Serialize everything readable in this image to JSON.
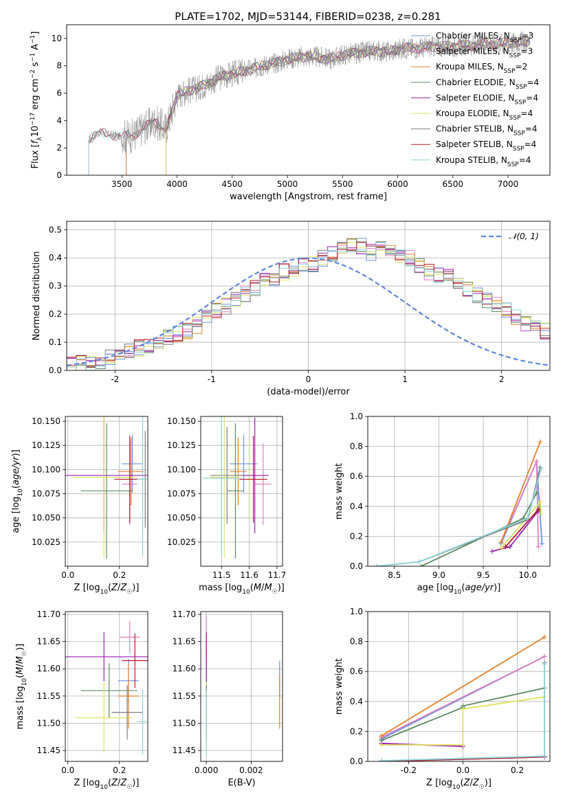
{
  "figure_title": "PLATE=1702, MJD=53144, FIBERID=0238, z=0.281",
  "colors": {
    "chabrier_miles": "#6f8fe0",
    "salpeter_miles": "#e07fc1",
    "kroupa_miles": "#e2802c",
    "chabrier_elodie": "#5e8a63",
    "salpeter_elodie": "#9a1fb0",
    "kroupa_elodie": "#dfe35e",
    "chabrier_stelib": "#7f7f7f",
    "salpeter_stelib": "#b2182b",
    "kroupa_stelib": "#8fd3d8",
    "gaussian": "#5f86dc",
    "grid": "#b0b0b0"
  },
  "chart_data": [
    {
      "id": "spectrum",
      "type": "line",
      "xlabel": "wavelength [Angstrom, rest frame]",
      "ylabel": "Flux [f_λ 10^-17 erg cm^-2 s^-1 A^-1]",
      "xlim": [
        3000,
        7380
      ],
      "ylim": [
        0,
        11
      ],
      "xticks": [
        3500,
        4000,
        4500,
        5000,
        5500,
        6000,
        6500,
        7000
      ],
      "yticks": [
        0,
        2,
        4,
        6,
        8,
        10
      ],
      "grid": false,
      "legend_position": "top-right",
      "legend": [
        {
          "text": "Chabrier MILES, N",
          "sub": "SSP",
          "tail": "=3",
          "color_key": "chabrier_miles"
        },
        {
          "text": "Salpeter MILES, N",
          "sub": "SSP",
          "tail": "=3",
          "color_key": "salpeter_miles"
        },
        {
          "text": "Kroupa MILES, N",
          "sub": "SSP",
          "tail": "=2",
          "color_key": "kroupa_miles"
        },
        {
          "text": "Chabrier ELODIE, N",
          "sub": "SSP",
          "tail": "=4",
          "color_key": "chabrier_elodie"
        },
        {
          "text": "Salpeter ELODIE, N",
          "sub": "SSP",
          "tail": "=4",
          "color_key": "salpeter_elodie"
        },
        {
          "text": "Kroupa ELODIE, N",
          "sub": "SSP",
          "tail": "=4",
          "color_key": "kroupa_elodie"
        },
        {
          "text": "Chabrier STELIB, N",
          "sub": "SSP",
          "tail": "=4",
          "color_key": "chabrier_stelib"
        },
        {
          "text": "Salpeter STELIB, N",
          "sub": "SSP",
          "tail": "=4",
          "color_key": "salpeter_stelib"
        },
        {
          "text": "Kroupa STELIB, N",
          "sub": "SSP",
          "tail": "=4",
          "color_key": "kroupa_stelib"
        }
      ],
      "continuum_x": [
        3200,
        3300,
        3400,
        3500,
        3600,
        3700,
        3800,
        3900,
        4000,
        4100,
        4200,
        4300,
        4400,
        4500,
        4600,
        4700,
        4800,
        4900,
        5000,
        5100,
        5200,
        5300,
        5400,
        5500,
        5600,
        5700,
        5800,
        5900,
        6000,
        6100,
        6200,
        6300,
        6400,
        6500,
        6600,
        6700,
        6800,
        6900,
        7000,
        7100,
        7200
      ],
      "continuum_y": [
        2.6,
        3.1,
        3.0,
        2.8,
        2.9,
        3.5,
        3.9,
        3.4,
        5.8,
        6.2,
        6.4,
        6.8,
        7.2,
        7.4,
        7.6,
        7.8,
        8.1,
        8.2,
        8.5,
        8.6,
        8.7,
        8.6,
        8.5,
        8.8,
        8.9,
        9.0,
        9.1,
        9.0,
        9.2,
        9.3,
        9.3,
        9.4,
        9.4,
        9.4,
        9.5,
        9.5,
        9.6,
        9.6,
        9.7,
        9.7,
        9.8
      ],
      "model_onsets": [
        {
          "model": "chabrier_miles",
          "start": 3540
        },
        {
          "model": "salpeter_miles",
          "start": 3540
        },
        {
          "model": "kroupa_miles",
          "start": 3540
        },
        {
          "model": "chabrier_elodie",
          "start": 3900
        },
        {
          "model": "salpeter_elodie",
          "start": 3900
        },
        {
          "model": "kroupa_elodie",
          "start": 3900
        },
        {
          "model": "chabrier_stelib",
          "start": 3200
        },
        {
          "model": "salpeter_stelib",
          "start": 3200
        },
        {
          "model": "kroupa_stelib",
          "start": 3200
        }
      ]
    },
    {
      "id": "residual_hist",
      "type": "line",
      "xlabel": "(data-model)/error",
      "ylabel": "Normed distribution",
      "xlim": [
        -2.5,
        2.5
      ],
      "ylim": [
        0,
        0.53
      ],
      "xticks": [
        -2,
        -1,
        0,
        1,
        2
      ],
      "yticks": [
        0.0,
        0.1,
        0.2,
        0.3,
        0.4,
        0.5
      ],
      "grid": true,
      "legend_position": "top-right",
      "legend": [
        {
          "text": "𝒩(0, 1)",
          "color_key": "gaussian",
          "style": "dashed"
        }
      ],
      "bin_width": 0.1,
      "bin_start": -2.5,
      "base_hist": [
        0.02,
        0.025,
        0.03,
        0.035,
        0.045,
        0.06,
        0.07,
        0.08,
        0.09,
        0.1,
        0.12,
        0.13,
        0.14,
        0.16,
        0.19,
        0.21,
        0.23,
        0.25,
        0.27,
        0.29,
        0.32,
        0.33,
        0.35,
        0.36,
        0.37,
        0.38,
        0.4,
        0.41,
        0.43,
        0.44,
        0.44,
        0.42,
        0.43,
        0.42,
        0.41,
        0.4,
        0.37,
        0.35,
        0.34,
        0.33,
        0.31,
        0.29,
        0.27,
        0.25,
        0.23,
        0.21,
        0.19,
        0.17,
        0.16,
        0.14,
        0.12,
        0.11,
        0.1,
        0.08,
        0.07,
        0.06,
        0.055,
        0.04,
        0.035,
        0.03
      ],
      "series_models": [
        "chabrier_miles",
        "salpeter_miles",
        "kroupa_miles",
        "chabrier_elodie",
        "salpeter_elodie",
        "kroupa_elodie",
        "chabrier_stelib",
        "salpeter_stelib",
        "kroupa_stelib"
      ]
    },
    {
      "id": "age_vs_Z",
      "type": "scatter",
      "xlabel": "Z [log10(Z/Z☉)]",
      "ylabel": "age [log10(age/yr)]",
      "xlim": [
        -0.01,
        0.31
      ],
      "ylim": [
        10.0,
        10.155
      ],
      "xticks": [
        0.0,
        0.2
      ],
      "yticks": [
        10.025,
        10.05,
        10.075,
        10.1,
        10.125,
        10.15
      ],
      "grid": true,
      "points": [
        {
          "model": "chabrier_miles",
          "x": 0.25,
          "xerr": 0.04,
          "y": 10.106,
          "yerr": 0.03
        },
        {
          "model": "salpeter_miles",
          "x": 0.24,
          "xerr": 0.03,
          "y": 10.085,
          "yerr": 0.042
        },
        {
          "model": "kroupa_miles",
          "x": 0.245,
          "xerr": 0.05,
          "y": 10.098,
          "yerr": 0.035
        },
        {
          "model": "chabrier_elodie",
          "x": 0.15,
          "xerr": 0.1,
          "y": 10.078,
          "yerr": 0.07
        },
        {
          "model": "salpeter_elodie",
          "x": 0.14,
          "xerr": 0.26,
          "y": 10.094,
          "yerr": 0.06
        },
        {
          "model": "kroupa_elodie",
          "x": 0.14,
          "xerr": 0.12,
          "y": 10.092,
          "yerr": 0.083
        },
        {
          "model": "chabrier_stelib",
          "x": 0.3,
          "xerr": 0.02,
          "y": 10.09,
          "yerr": 0.05
        },
        {
          "model": "salpeter_stelib",
          "x": 0.24,
          "xerr": 0.06,
          "y": 10.09,
          "yerr": 0.045
        },
        {
          "model": "kroupa_stelib",
          "x": 0.29,
          "xerr": 0.02,
          "y": 10.09,
          "yerr": 0.08
        }
      ]
    },
    {
      "id": "age_vs_mass",
      "type": "scatter",
      "xlabel": "mass [log10(M/M☉)]",
      "ylabel": "",
      "xlim": [
        11.425,
        11.72
      ],
      "ylim": [
        10.0,
        10.155
      ],
      "xticks": [
        11.5,
        11.6,
        11.7
      ],
      "yticks": [
        10.025,
        10.05,
        10.075,
        10.1,
        10.125,
        10.15
      ],
      "grid": true,
      "points": [
        {
          "model": "chabrier_miles",
          "x": 11.58,
          "xerr": 0.05,
          "y": 10.106,
          "yerr": 0.03
        },
        {
          "model": "salpeter_miles",
          "x": 11.65,
          "xerr": 0.03,
          "y": 10.085,
          "yerr": 0.042
        },
        {
          "model": "kroupa_miles",
          "x": 11.56,
          "xerr": 0.03,
          "y": 10.098,
          "yerr": 0.035
        },
        {
          "model": "chabrier_elodie",
          "x": 11.55,
          "xerr": 0.03,
          "y": 10.078,
          "yerr": 0.07
        },
        {
          "model": "salpeter_elodie",
          "x": 11.62,
          "xerr": 0.05,
          "y": 10.094,
          "yerr": 0.06
        },
        {
          "model": "kroupa_elodie",
          "x": 11.51,
          "xerr": 0.05,
          "y": 10.092,
          "yerr": 0.083
        },
        {
          "model": "chabrier_stelib",
          "x": 11.52,
          "xerr": 0.06,
          "y": 10.094,
          "yerr": 0.05
        },
        {
          "model": "salpeter_stelib",
          "x": 11.615,
          "xerr": 0.05,
          "y": 10.09,
          "yerr": 0.045
        },
        {
          "model": "kroupa_stelib",
          "x": 11.5,
          "xerr": 0.07,
          "y": 10.091,
          "yerr": 0.08
        }
      ]
    },
    {
      "id": "massweight_vs_age",
      "type": "line",
      "xlabel": "age [log10(age/yr)]",
      "ylabel": "mass weight",
      "xlim": [
        8.2,
        10.25
      ],
      "ylim": [
        0,
        1.0
      ],
      "xticks": [
        8.5,
        9.0,
        9.5,
        10.0
      ],
      "yticks": [
        0.0,
        0.2,
        0.4,
        0.6,
        0.8,
        1.0
      ],
      "grid": true,
      "series": [
        {
          "model": "chabrier_miles",
          "x": [
            9.7,
            10.1,
            10.16
          ],
          "y": [
            0.15,
            0.7,
            0.15
          ]
        },
        {
          "model": "salpeter_miles",
          "x": [
            9.7,
            10.1,
            10.12
          ],
          "y": [
            0.16,
            0.7,
            0.13
          ]
        },
        {
          "model": "kroupa_miles",
          "x": [
            9.7,
            10.14
          ],
          "y": [
            0.16,
            0.83
          ]
        },
        {
          "model": "chabrier_elodie",
          "x": [
            8.8,
            9.95,
            10.1
          ],
          "y": [
            0.0,
            0.32,
            0.49
          ]
        },
        {
          "model": "salpeter_elodie",
          "x": [
            9.6,
            9.8,
            10.12
          ],
          "y": [
            0.1,
            0.13,
            0.37
          ]
        },
        {
          "model": "kroupa_elodie",
          "x": [
            9.7,
            10.14,
            10.15
          ],
          "y": [
            0.12,
            0.43,
            0.35
          ]
        },
        {
          "model": "chabrier_stelib",
          "x": [
            8.3,
            8.78,
            10.0,
            10.14
          ],
          "y": [
            0.0,
            0.03,
            0.31,
            0.66
          ]
        },
        {
          "model": "salpeter_stelib",
          "x": [
            9.75,
            10.12
          ],
          "y": [
            0.13,
            0.38
          ]
        },
        {
          "model": "kroupa_stelib",
          "x": [
            8.3,
            8.78,
            10.0,
            10.15
          ],
          "y": [
            0.0,
            0.03,
            0.32,
            0.65
          ]
        }
      ]
    },
    {
      "id": "mass_vs_Z",
      "type": "scatter",
      "xlabel": "Z [log10(Z/Z☉)]",
      "ylabel": "mass [log10(M/M☉)]",
      "xlim": [
        -0.01,
        0.31
      ],
      "ylim": [
        11.43,
        11.705
      ],
      "xticks": [
        0.0,
        0.2
      ],
      "yticks": [
        11.45,
        11.5,
        11.55,
        11.6,
        11.65,
        11.7
      ],
      "grid": true,
      "points": [
        {
          "model": "chabrier_miles",
          "x": 0.235,
          "xerr": 0.04,
          "y": 11.578,
          "yerr": 0.04
        },
        {
          "model": "salpeter_miles",
          "x": 0.24,
          "xerr": 0.04,
          "y": 11.658,
          "yerr": 0.03
        },
        {
          "model": "kroupa_miles",
          "x": 0.235,
          "xerr": 0.04,
          "y": 11.55,
          "yerr": 0.06
        },
        {
          "model": "chabrier_elodie",
          "x": 0.16,
          "xerr": 0.11,
          "y": 11.56,
          "yerr": 0.05
        },
        {
          "model": "salpeter_elodie",
          "x": 0.14,
          "xerr": 0.26,
          "y": 11.622,
          "yerr": 0.045
        },
        {
          "model": "kroupa_elodie",
          "x": 0.14,
          "xerr": 0.11,
          "y": 11.51,
          "yerr": 0.065
        },
        {
          "model": "chabrier_stelib",
          "x": 0.23,
          "xerr": 0.06,
          "y": 11.52,
          "yerr": 0.05
        },
        {
          "model": "salpeter_stelib",
          "x": 0.26,
          "xerr": 0.05,
          "y": 11.615,
          "yerr": 0.05
        },
        {
          "model": "kroupa_stelib",
          "x": 0.29,
          "xerr": 0.02,
          "y": 11.503,
          "yerr": 0.06
        }
      ]
    },
    {
      "id": "mass_vs_ebv",
      "type": "scatter",
      "xlabel": "E(B-V)",
      "ylabel": "",
      "xlim": [
        -0.00025,
        0.0034
      ],
      "ylim": [
        11.43,
        11.705
      ],
      "xticks": [
        0.0,
        0.002
      ],
      "yticks": [
        11.45,
        11.5,
        11.55,
        11.6,
        11.65,
        11.7
      ],
      "grid": true,
      "points": [
        {
          "model": "chabrier_miles",
          "x": 0.00327,
          "xerr": 0.0,
          "y": 11.58,
          "yerr": 0.035
        },
        {
          "model": "kroupa_miles",
          "x": 0.00327,
          "xerr": 0.0,
          "y": 11.54,
          "yerr": 0.05
        },
        {
          "model": "salpeter_miles",
          "x": 0.0,
          "xerr": 0.0,
          "y": 11.658,
          "yerr": 0.04
        },
        {
          "model": "salpeter_stelib",
          "x": 0.0,
          "xerr": 0.0,
          "y": 11.615,
          "yerr": 0.05
        },
        {
          "model": "chabrier_elodie",
          "x": 0.0,
          "xerr": 0.0,
          "y": 11.56,
          "yerr": 0.05
        },
        {
          "model": "salpeter_elodie",
          "x": 0.0,
          "xerr": 0.0,
          "y": 11.622,
          "yerr": 0.045
        },
        {
          "model": "kroupa_elodie",
          "x": 0.0,
          "xerr": 0.0,
          "y": 11.51,
          "yerr": 0.065
        },
        {
          "model": "chabrier_stelib",
          "x": 0.0,
          "xerr": 0.0,
          "y": 11.52,
          "yerr": 0.05
        },
        {
          "model": "kroupa_stelib",
          "x": 0.0,
          "xerr": 0.0,
          "y": 11.5,
          "yerr": 0.06
        }
      ]
    },
    {
      "id": "massweight_vs_Z",
      "type": "line",
      "xlabel": "Z [log10(Z/Z☉)]",
      "ylabel": "mass weight",
      "xlim": [
        -0.35,
        0.32
      ],
      "ylim": [
        0,
        1.0
      ],
      "xticks": [
        -0.2,
        0.0,
        0.2
      ],
      "yticks": [
        0.0,
        0.2,
        0.4,
        0.6,
        0.8,
        1.0
      ],
      "grid": true,
      "series": [
        {
          "model": "chabrier_miles",
          "x": [
            -0.3,
            0.3
          ],
          "y": [
            0.15,
            0.7
          ]
        },
        {
          "model": "salpeter_miles",
          "x": [
            -0.3,
            0.3
          ],
          "y": [
            0.16,
            0.7
          ]
        },
        {
          "model": "kroupa_miles",
          "x": [
            -0.3,
            0.3
          ],
          "y": [
            0.17,
            0.83
          ]
        },
        {
          "model": "chabrier_elodie",
          "x": [
            -0.3,
            0.0,
            0.0,
            0.3
          ],
          "y": [
            0.14,
            0.36,
            0.37,
            0.49
          ]
        },
        {
          "model": "salpeter_elodie",
          "x": [
            -0.3,
            0.0
          ],
          "y": [
            0.12,
            0.1
          ]
        },
        {
          "model": "kroupa_elodie",
          "x": [
            -0.3,
            0.0,
            0.0,
            0.3
          ],
          "y": [
            0.11,
            0.11,
            0.35,
            0.43
          ]
        },
        {
          "model": "chabrier_stelib",
          "x": [
            -0.3,
            0.3,
            0.3
          ],
          "y": [
            0.0,
            0.03,
            0.66
          ]
        },
        {
          "model": "salpeter_stelib",
          "x": [
            -0.3,
            0.3
          ],
          "y": [
            0.0,
            0.03
          ]
        },
        {
          "model": "kroupa_stelib",
          "x": [
            -0.3,
            0.3,
            0.3
          ],
          "y": [
            0.005,
            0.035,
            0.65
          ]
        }
      ]
    }
  ]
}
